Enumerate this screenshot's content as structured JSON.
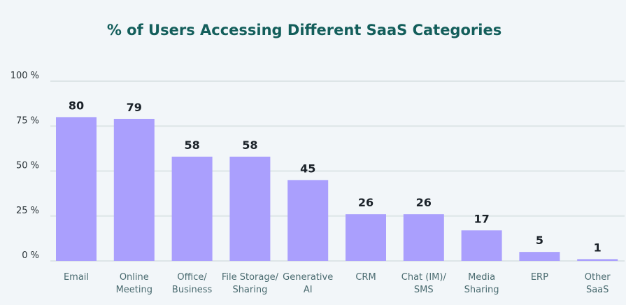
{
  "chart_data": {
    "type": "bar",
    "title": "% of Users Accessing Different SaaS Categories",
    "xlabel": "",
    "ylabel": "",
    "ylim": [
      0,
      100
    ],
    "yticks": [
      0,
      25,
      50,
      75,
      100
    ],
    "ytick_labels": [
      "0 %",
      "25 %",
      "50 %",
      "75 %",
      "100 %"
    ],
    "grid": true,
    "categories": [
      [
        "Email"
      ],
      [
        "Online",
        "Meeting"
      ],
      [
        "Office/",
        "Business"
      ],
      [
        "File Storage/",
        "Sharing"
      ],
      [
        "Generative",
        "AI"
      ],
      [
        "CRM"
      ],
      [
        "Chat (IM)/",
        "SMS"
      ],
      [
        "Media",
        "Sharing"
      ],
      [
        "ERP"
      ],
      [
        "Other",
        "SaaS"
      ]
    ],
    "values": [
      80,
      79,
      58,
      58,
      45,
      26,
      26,
      17,
      5,
      1
    ],
    "data_labels": [
      "80",
      "79",
      "58",
      "58",
      "45",
      "26",
      "26",
      "17",
      "5",
      "1"
    ],
    "colors": {
      "bar": "#aa9ffd",
      "title": "#135e5b"
    }
  }
}
